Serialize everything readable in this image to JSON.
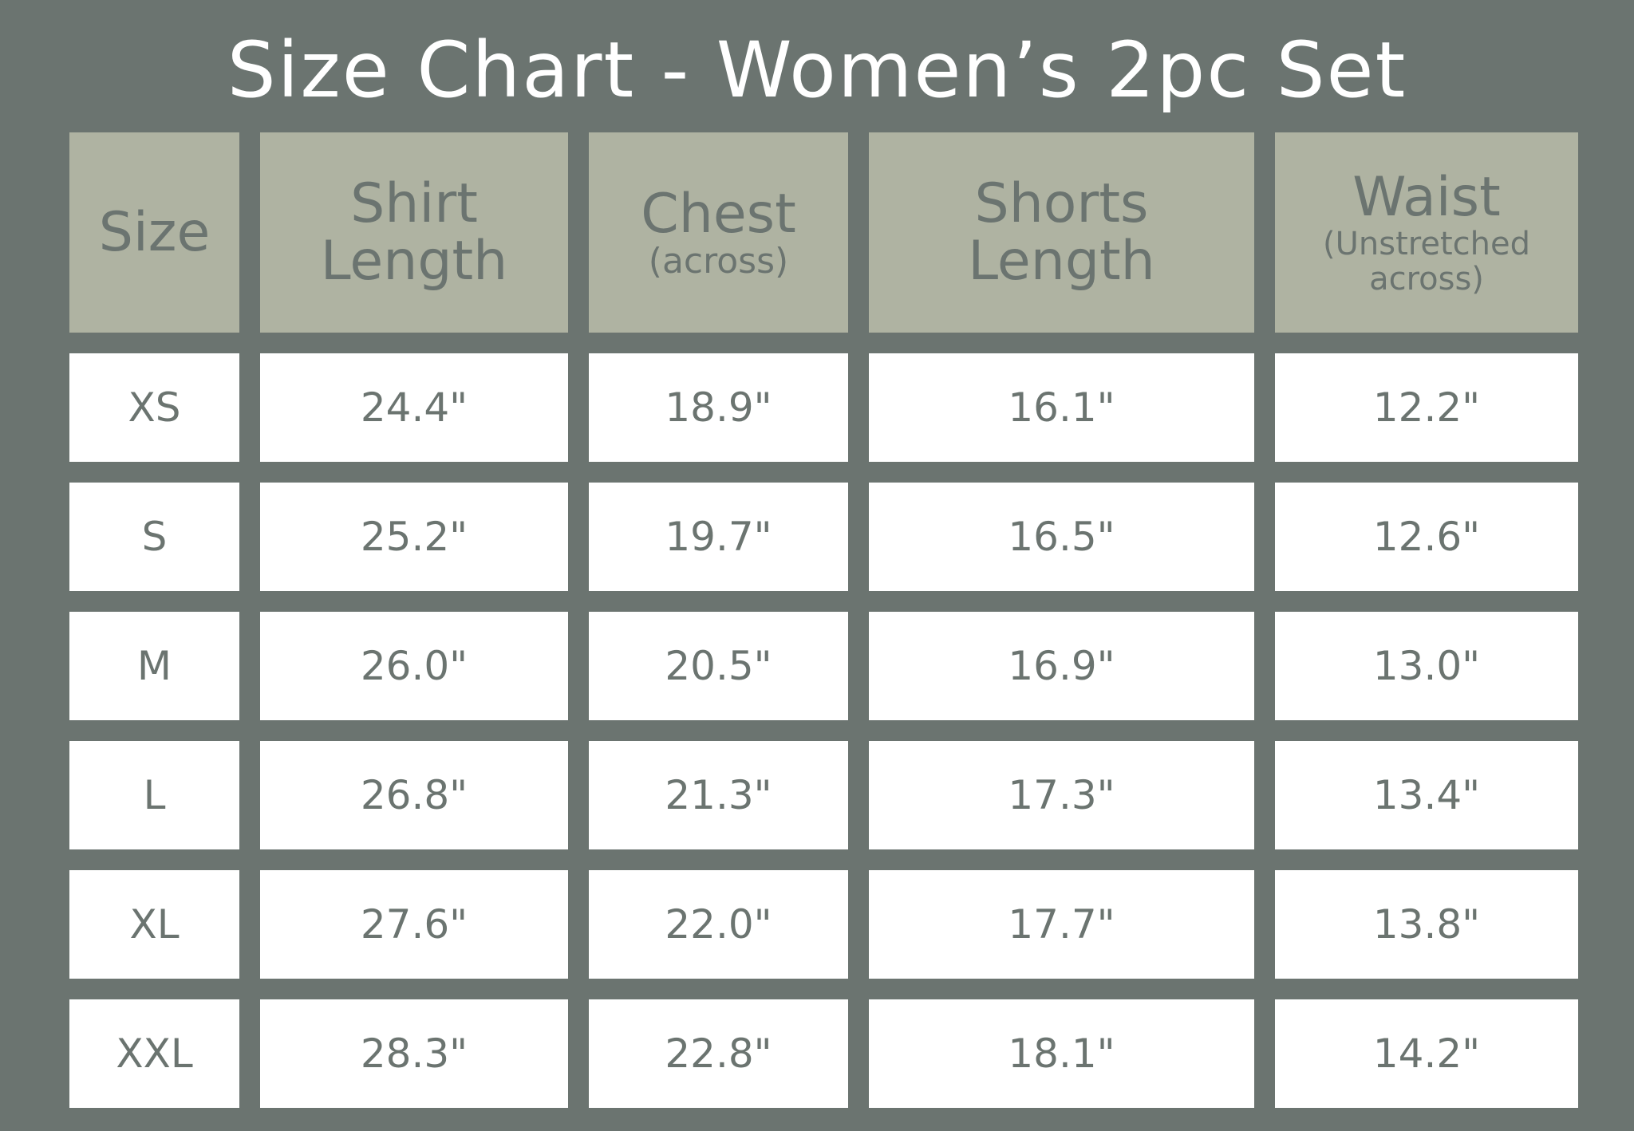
{
  "title": "Size Chart - Women’s 2pc Set",
  "colors": {
    "background": "#6b7470",
    "header": "#afb3a2",
    "cell": "#ffffff",
    "text": "#6b7470",
    "title": "#ffffff"
  },
  "headers": [
    {
      "lines": [
        "Size"
      ],
      "sub": ""
    },
    {
      "lines": [
        "Shirt",
        "Length"
      ],
      "sub": ""
    },
    {
      "lines": [
        "Chest"
      ],
      "sub": "(across)"
    },
    {
      "lines": [
        "Shorts",
        "Length"
      ],
      "sub": ""
    },
    {
      "lines": [
        "Waist"
      ],
      "sub": "(Unstretched across)"
    }
  ],
  "rows": [
    [
      "XS",
      "24.4\"",
      "18.9\"",
      "16.1\"",
      "12.2\""
    ],
    [
      "S",
      "25.2\"",
      "19.7\"",
      "16.5\"",
      "12.6\""
    ],
    [
      "M",
      "26.0\"",
      "20.5\"",
      "16.9\"",
      "13.0\""
    ],
    [
      "L",
      "26.8\"",
      "21.3\"",
      "17.3\"",
      "13.4\""
    ],
    [
      "XL",
      "27.6\"",
      "22.0\"",
      "17.7\"",
      "13.8\""
    ],
    [
      "XXL",
      "28.3\"",
      "22.8\"",
      "18.1\"",
      "14.2\""
    ]
  ]
}
